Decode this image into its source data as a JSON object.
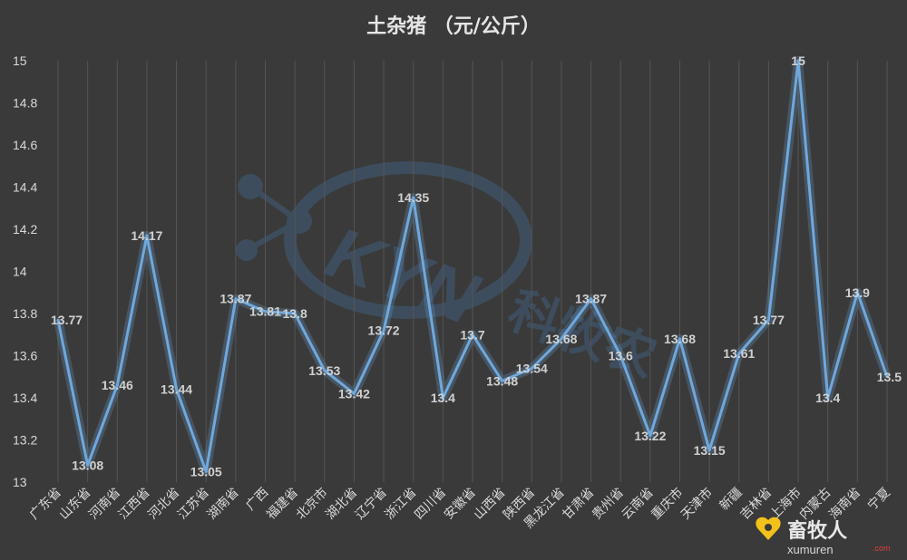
{
  "chart_data": {
    "type": "line",
    "title": "土杂猪  （元/公斤）",
    "categories": [
      "广东省",
      "山东省",
      "河南省",
      "江西省",
      "河北省",
      "江苏省",
      "湖南省",
      "广西",
      "福建省",
      "北京市",
      "湖北省",
      "辽宁省",
      "浙江省",
      "四川省",
      "安徽省",
      "山西省",
      "陕西省",
      "黑龙江省",
      "甘肃省",
      "贵州省",
      "云南省",
      "重庆市",
      "天津市",
      "新疆",
      "吉林省",
      "上海市",
      "内蒙古",
      "海南省",
      "宁夏"
    ],
    "values": [
      13.77,
      13.08,
      13.46,
      14.17,
      13.44,
      13.05,
      13.87,
      13.81,
      13.8,
      13.53,
      13.42,
      13.72,
      14.35,
      13.4,
      13.7,
      13.48,
      13.54,
      13.68,
      13.87,
      13.6,
      13.22,
      13.68,
      13.15,
      13.61,
      13.77,
      15,
      13.4,
      13.9,
      13.5
    ],
    "data_labels": [
      "13.77",
      "13.08",
      "13.46",
      "14.17",
      "13.44",
      "13.05",
      "13.87",
      "13.81",
      "13.8",
      "13.53",
      "13.42",
      "13.72",
      "14.35",
      "13.4",
      "13.7",
      "13.48",
      "13.54",
      "13.68",
      "13.87",
      "13.6",
      "13.22",
      "13.68",
      "13.15",
      "13.61",
      "13.77",
      "15",
      "13.4",
      "13.9",
      "13.5"
    ],
    "ylim": [
      13,
      15
    ],
    "yticks": [
      "13",
      "13.2",
      "13.4",
      "13.6",
      "13.8",
      "14",
      "14.2",
      "14.4",
      "14.6",
      "14.8",
      "15"
    ],
    "grid": "vertical",
    "line_color": "#6fa8dc",
    "background": "#3a3a3a"
  },
  "watermark": {
    "logo_text": "KYN",
    "brand": "科牧农",
    "site_name": "畜牧人",
    "site_url": "xumuren",
    "site_tld": ".com"
  }
}
